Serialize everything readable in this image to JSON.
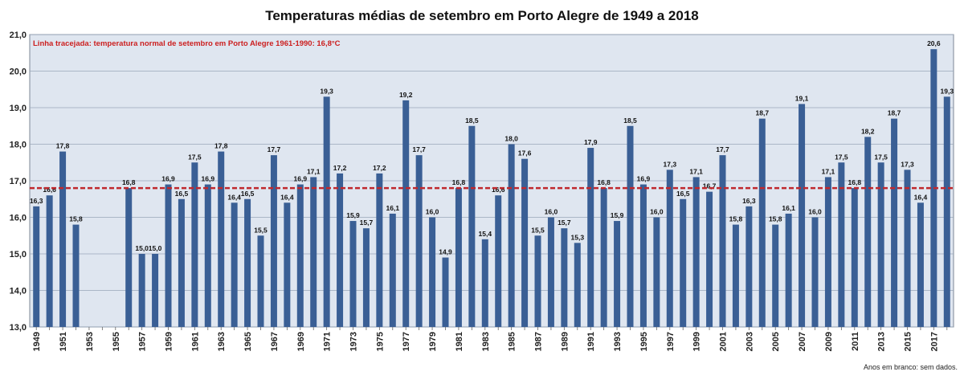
{
  "chart_data": {
    "type": "bar",
    "title": "Temperaturas médias de setembro em Porto Alegre de 1949 a 2018",
    "xlabel": "",
    "ylabel": "",
    "ylim": [
      13.0,
      21.0
    ],
    "yticks": [
      "13,0",
      "14,0",
      "15,0",
      "16,0",
      "17,0",
      "18,0",
      "19,0",
      "20,0",
      "21,0"
    ],
    "x_tick_labels": [
      "1949",
      "1951",
      "1953",
      "1955",
      "1957",
      "1959",
      "1961",
      "1963",
      "1965",
      "1967",
      "1969",
      "1971",
      "1973",
      "1975",
      "1977",
      "1979",
      "1981",
      "1983",
      "1985",
      "1987",
      "1989",
      "1991",
      "1993",
      "1995",
      "1997",
      "1999",
      "2001",
      "2003",
      "2005",
      "2007",
      "2009",
      "2011",
      "2013",
      "2015",
      "2017"
    ],
    "grid": true,
    "categories": [
      1949,
      1950,
      1951,
      1952,
      1953,
      1954,
      1955,
      1956,
      1957,
      1958,
      1959,
      1960,
      1961,
      1962,
      1963,
      1964,
      1965,
      1966,
      1967,
      1968,
      1969,
      1970,
      1971,
      1972,
      1973,
      1974,
      1975,
      1976,
      1977,
      1978,
      1979,
      1980,
      1981,
      1982,
      1983,
      1984,
      1985,
      1986,
      1987,
      1988,
      1989,
      1990,
      1991,
      1992,
      1993,
      1994,
      1995,
      1996,
      1997,
      1998,
      1999,
      2000,
      2001,
      2002,
      2003,
      2004,
      2005,
      2006,
      2007,
      2008,
      2009,
      2010,
      2011,
      2012,
      2013,
      2014,
      2015,
      2016,
      2017,
      2018
    ],
    "values": [
      16.3,
      16.6,
      17.8,
      15.8,
      null,
      null,
      null,
      16.8,
      15.0,
      15.0,
      16.9,
      16.5,
      17.5,
      16.9,
      17.8,
      16.4,
      16.5,
      15.5,
      17.7,
      16.4,
      16.9,
      17.1,
      19.3,
      17.2,
      15.9,
      15.7,
      17.2,
      16.1,
      19.2,
      17.7,
      16.0,
      14.9,
      16.8,
      18.5,
      15.4,
      16.6,
      18.0,
      17.6,
      15.5,
      16.0,
      15.7,
      15.3,
      17.9,
      16.8,
      15.9,
      18.5,
      16.9,
      16.0,
      17.3,
      16.5,
      17.1,
      16.7,
      17.7,
      15.8,
      16.3,
      18.7,
      15.8,
      16.1,
      19.1,
      16.0,
      17.1,
      17.5,
      16.8,
      18.2,
      17.5,
      18.7,
      17.3,
      16.4,
      20.6,
      19.3
    ],
    "data_labels": [
      "16,3",
      "16,6",
      "17,8",
      "15,8",
      "",
      "",
      "",
      "16,8",
      "15,0",
      "15,0",
      "16,9",
      "16,5",
      "17,5",
      "16,9",
      "17,8",
      "16,4",
      "16,5",
      "15,5",
      "17,7",
      "16,4",
      "16,9",
      "17,1",
      "19,3",
      "17,2",
      "15,9",
      "15,7",
      "17,2",
      "16,1",
      "19,2",
      "17,7",
      "16,0",
      "14,9",
      "16,8",
      "18,5",
      "15,4",
      "16,6",
      "18,0",
      "17,6",
      "15,5",
      "16,0",
      "15,7",
      "15,3",
      "17,9",
      "16,8",
      "15,9",
      "18,5",
      "16,9",
      "16,0",
      "17,3",
      "16,5",
      "17,1",
      "16,7",
      "17,7",
      "15,8",
      "16,3",
      "18,7",
      "15,8",
      "16,1",
      "19,1",
      "16,0",
      "17,1",
      "17,5",
      "16,8",
      "18,2",
      "17,5",
      "18,7",
      "17,3",
      "16,4",
      "20,6",
      "19,3"
    ],
    "reference_line": {
      "value": 16.8,
      "style": "dashed",
      "label": "Linha tracejada: temperatura normal de setembro em Porto Alegre 1961-1990: 16,8°C"
    },
    "footnote": "Anos em branco: sem dados.",
    "colors": {
      "bar": "#3a5f95",
      "plot_background": "#dfe6f0",
      "grid": "#9aa7ba",
      "reference_line": "#c0282d",
      "annotation_text": "#cc1f1f"
    }
  }
}
